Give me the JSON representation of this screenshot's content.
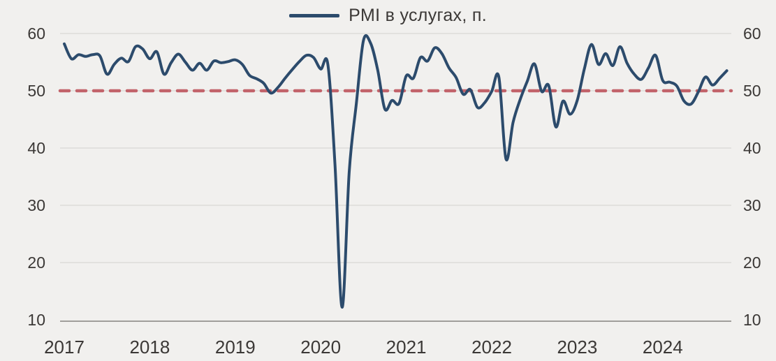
{
  "page": {
    "background": "#f1f0ee"
  },
  "chart_data": {
    "type": "line",
    "title": "PMI в услугах, п.",
    "legend_position": "top-center",
    "grid": "horizontal",
    "y_axis_sides": "both",
    "ylim": [
      10,
      60
    ],
    "y_ticks": [
      10,
      20,
      30,
      40,
      50,
      60
    ],
    "x_tick_labels": [
      "2017",
      "2018",
      "2019",
      "2020",
      "2021",
      "2022",
      "2023",
      "2024"
    ],
    "x_monthly_start": "2017-01",
    "x_monthly_end": "2024-10",
    "reference_line": {
      "value": 50,
      "style": "dashed",
      "color": "#c2636a"
    },
    "series": [
      {
        "name": "PMI в услугах, п.",
        "color": "#2c4b6c",
        "values": [
          58.2,
          55.6,
          56.3,
          56.0,
          56.3,
          56.1,
          52.9,
          54.6,
          55.7,
          55.1,
          57.7,
          57.3,
          55.6,
          56.8,
          52.9,
          54.9,
          56.4,
          55.0,
          53.6,
          54.8,
          53.6,
          55.2,
          54.9,
          55.1,
          55.4,
          54.6,
          52.7,
          52.1,
          51.3,
          49.6,
          50.6,
          52.2,
          53.7,
          55.1,
          56.2,
          55.8,
          53.8,
          54.6,
          37.1,
          12.2,
          35.9,
          47.8,
          58.8,
          58.3,
          53.6,
          46.8,
          48.3,
          47.8,
          52.6,
          52.2,
          55.8,
          55.2,
          57.5,
          56.5,
          54.0,
          52.3,
          49.4,
          50.2,
          47.1,
          47.9,
          49.9,
          52.4,
          38.1,
          44.5,
          48.5,
          51.7,
          54.7,
          49.9,
          50.9,
          43.7,
          48.2,
          45.9,
          48.3,
          53.8,
          58.1,
          54.6,
          56.5,
          54.4,
          57.7,
          54.8,
          52.9,
          52.0,
          54.0,
          56.2,
          51.8,
          51.5,
          50.8,
          48.2,
          47.7,
          49.8,
          52.4,
          51.0,
          52.2,
          53.5
        ]
      }
    ],
    "colors": {
      "background": "#f1f0ee",
      "grid": "#dddcd9",
      "axis": "#a09e9b",
      "text": "#3b3836"
    }
  }
}
